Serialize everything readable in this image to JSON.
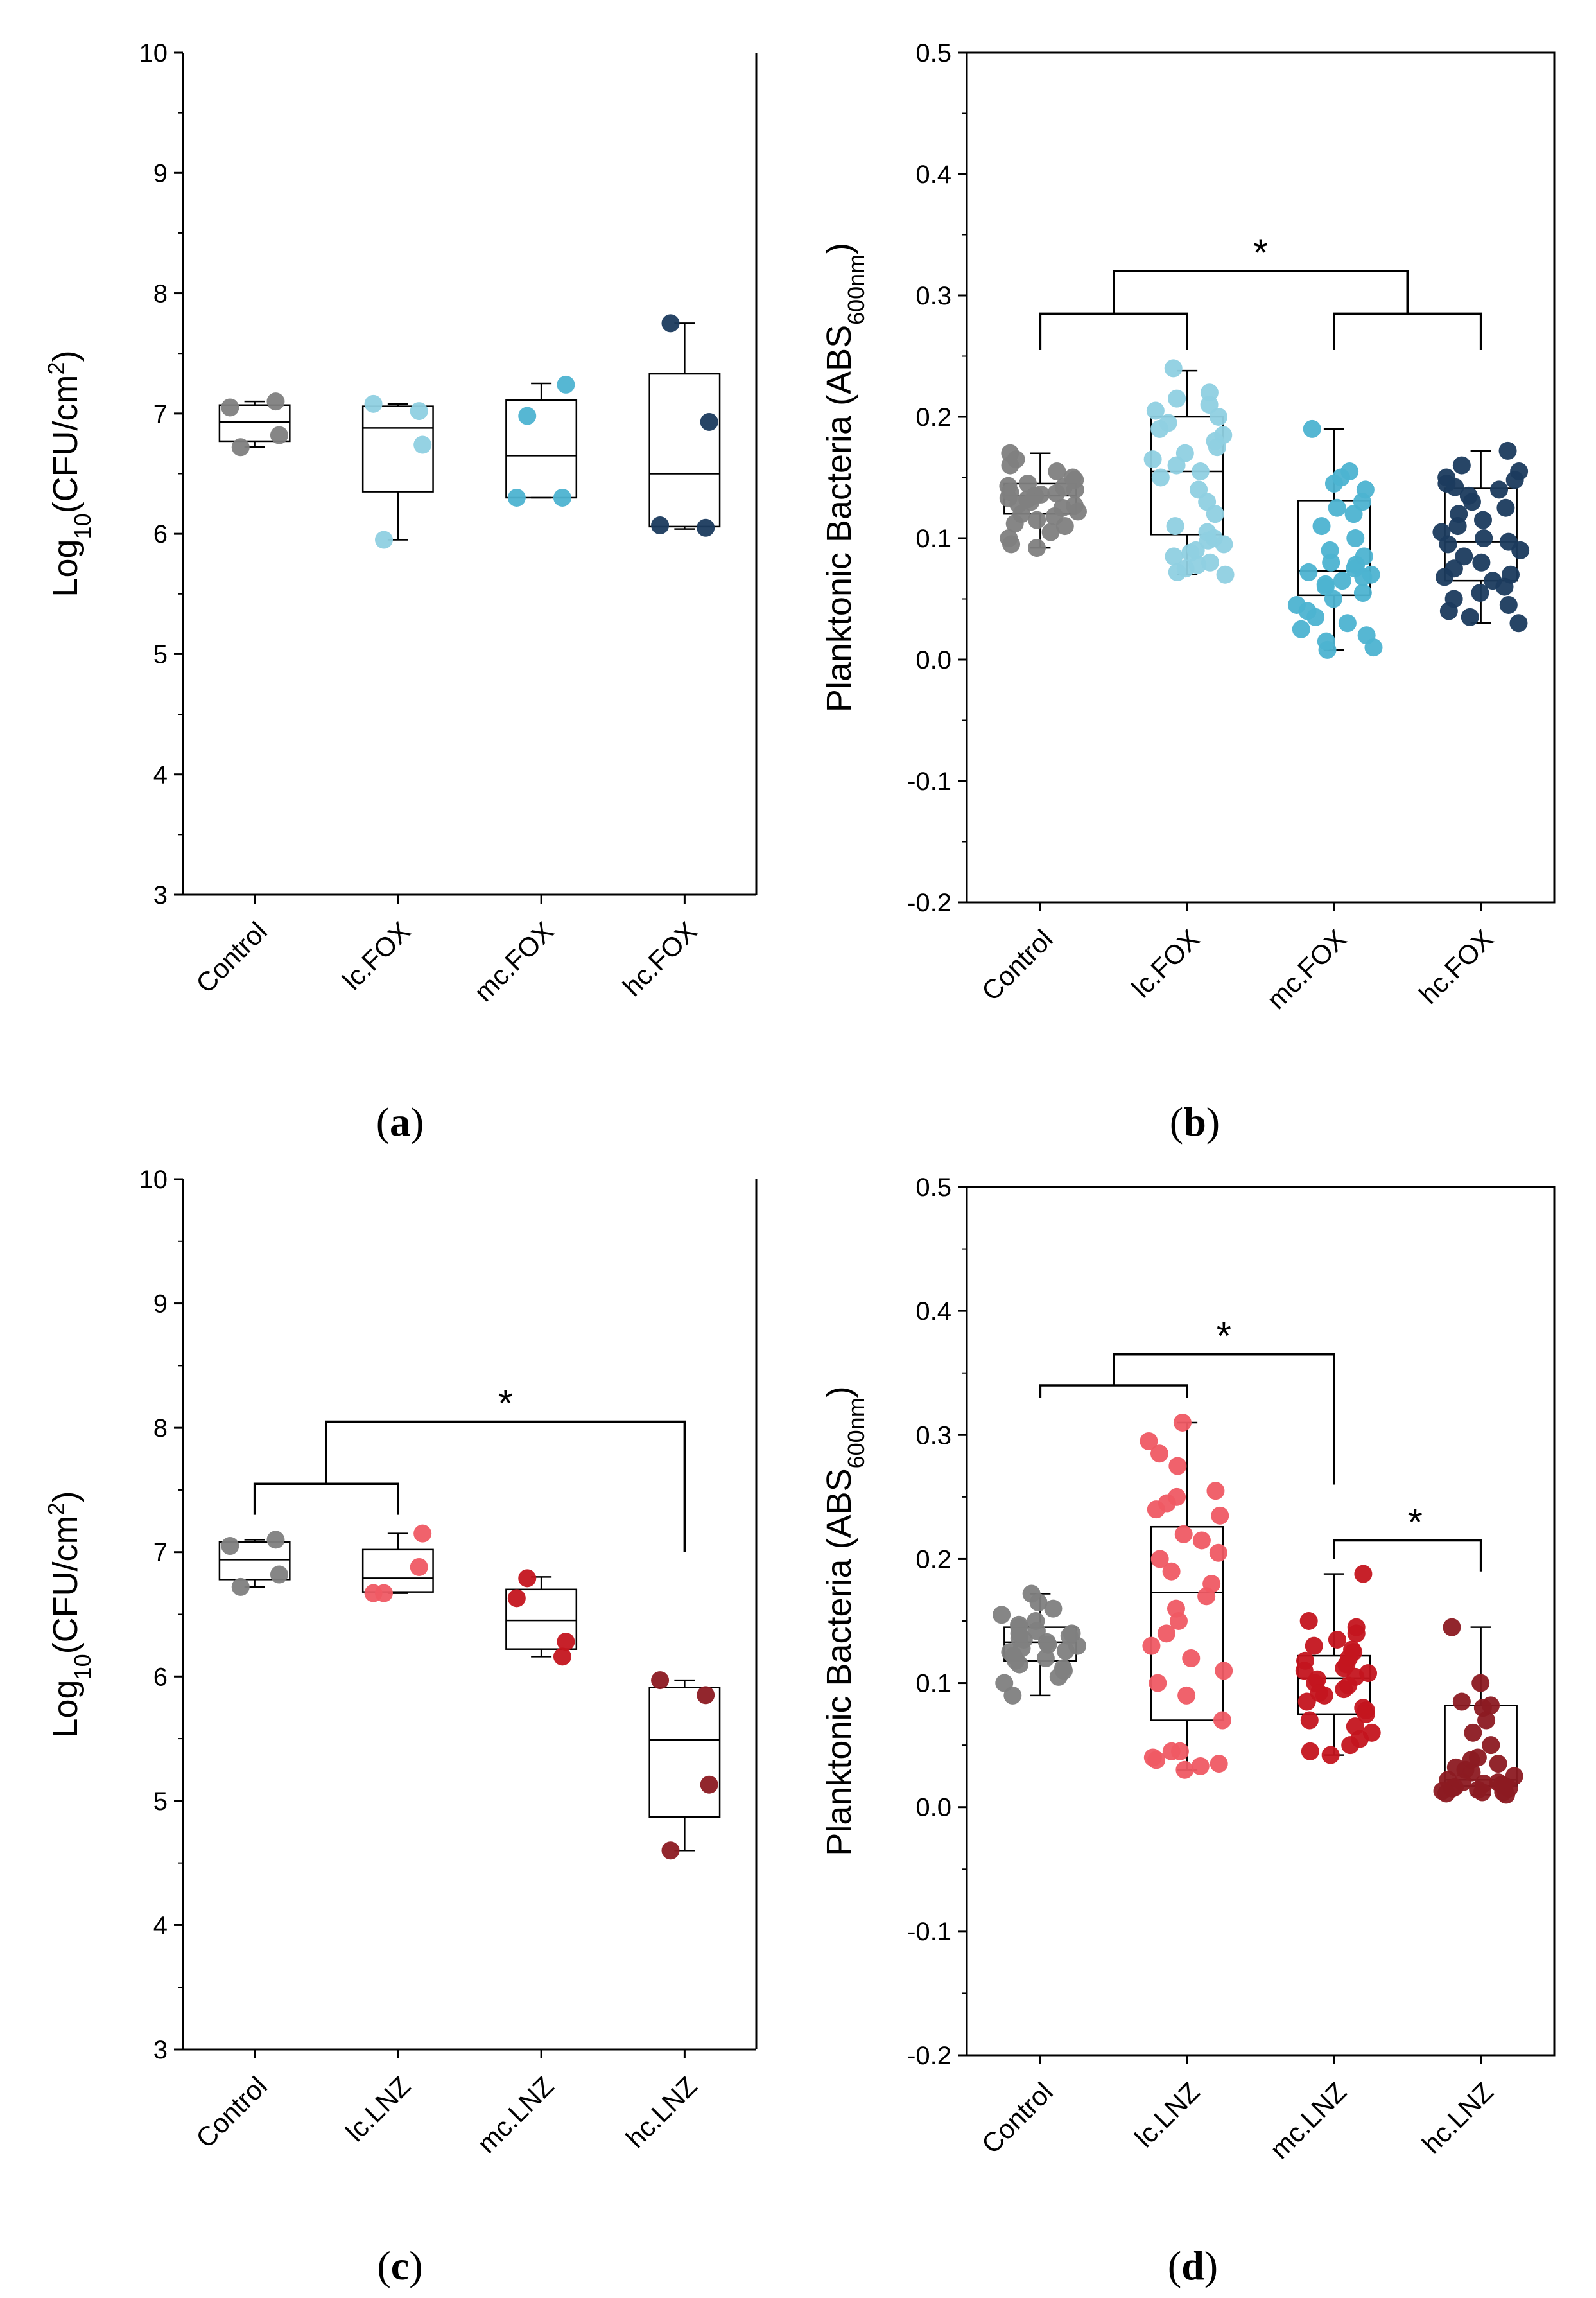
{
  "colors": {
    "control": "#7f7f7f",
    "fox_lc": "#8fd0e2",
    "fox_mc": "#4db3d1",
    "fox_hc": "#1b3b5e",
    "lnz_lc": "#ef5a64",
    "lnz_mc": "#c4151f",
    "lnz_hc": "#8c1a22"
  },
  "chart_data": [
    {
      "panel": "a",
      "type": "box",
      "caption_letter": "a",
      "ylabel_main": "Log",
      "ylabel_sub": "10",
      "ylabel_rest": "(CFU/cm",
      "ylabel_sup": "2",
      "ylabel_end": ")",
      "ylim": [
        3,
        10
      ],
      "yticks": [
        "3",
        "4",
        "5",
        "6",
        "7",
        "8",
        "9",
        "10"
      ],
      "categories": [
        "Control",
        "lc.FOX",
        "mc.FOX",
        "hc.FOX"
      ],
      "color_keys": [
        "control",
        "fox_lc",
        "fox_mc",
        "fox_hc"
      ],
      "boxes": [
        {
          "q1": 6.77,
          "median": 6.93,
          "q3": 7.07,
          "whisker_low": 6.72,
          "whisker_high": 7.1
        },
        {
          "q1": 6.35,
          "median": 6.88,
          "q3": 7.06,
          "whisker_low": 5.95,
          "whisker_high": 7.08
        },
        {
          "q1": 6.3,
          "median": 6.65,
          "q3": 7.11,
          "whisker_low": 6.3,
          "whisker_high": 7.25
        },
        {
          "q1": 6.06,
          "median": 6.5,
          "q3": 7.33,
          "whisker_low": 6.04,
          "whisker_high": 7.75
        }
      ],
      "points": [
        [
          7.05,
          6.82,
          6.72,
          7.1
        ],
        [
          7.08,
          6.74,
          5.95,
          7.02
        ],
        [
          6.3,
          7.24,
          6.98,
          6.3
        ],
        [
          6.07,
          6.93,
          7.75,
          6.05
        ]
      ],
      "brackets": []
    },
    {
      "panel": "b",
      "type": "box",
      "caption_letter": "b",
      "ylabel_main": "Planktonic Bacteria (ABS",
      "ylabel_sub": "600nm",
      "ylabel_rest": ")",
      "ylabel_sup": "",
      "ylabel_end": "",
      "ylim": [
        -0.2,
        0.5
      ],
      "yticks": [
        "-0.2",
        "-0.1",
        "0.0",
        "0.1",
        "0.2",
        "0.3",
        "0.4",
        "0.5"
      ],
      "categories": [
        "Control",
        "lc.FOX",
        "mc.FOX",
        "hc.FOX"
      ],
      "color_keys": [
        "control",
        "fox_lc",
        "fox_mc",
        "fox_hc"
      ],
      "boxes": [
        {
          "q1": 0.12,
          "median": 0.135,
          "q3": 0.145,
          "whisker_low": 0.092,
          "whisker_high": 0.17
        },
        {
          "q1": 0.103,
          "median": 0.155,
          "q3": 0.2,
          "whisker_low": 0.07,
          "whisker_high": 0.238
        },
        {
          "q1": 0.053,
          "median": 0.073,
          "q3": 0.131,
          "whisker_low": 0.008,
          "whisker_high": 0.19
        },
        {
          "q1": 0.065,
          "median": 0.097,
          "q3": 0.141,
          "whisker_low": 0.03,
          "whisker_high": 0.172
        }
      ],
      "points": [
        [
          0.17,
          0.165,
          0.16,
          0.155,
          0.15,
          0.148,
          0.145,
          0.142,
          0.14,
          0.138,
          0.136,
          0.135,
          0.133,
          0.132,
          0.13,
          0.128,
          0.127,
          0.125,
          0.122,
          0.12,
          0.118,
          0.115,
          0.112,
          0.11,
          0.105,
          0.1,
          0.095,
          0.092,
          0.143,
          0.137
        ],
        [
          0.24,
          0.22,
          0.215,
          0.21,
          0.205,
          0.2,
          0.195,
          0.19,
          0.185,
          0.18,
          0.175,
          0.17,
          0.165,
          0.16,
          0.155,
          0.15,
          0.14,
          0.13,
          0.12,
          0.11,
          0.1,
          0.095,
          0.09,
          0.085,
          0.08,
          0.075,
          0.072,
          0.07,
          0.078,
          0.088,
          0.098,
          0.105
        ],
        [
          0.19,
          0.155,
          0.15,
          0.145,
          0.14,
          0.13,
          0.125,
          0.12,
          0.11,
          0.1,
          0.09,
          0.085,
          0.08,
          0.078,
          0.075,
          0.072,
          0.07,
          0.068,
          0.065,
          0.062,
          0.06,
          0.055,
          0.05,
          0.045,
          0.04,
          0.035,
          0.03,
          0.025,
          0.02,
          0.015,
          0.01,
          0.008
        ],
        [
          0.172,
          0.16,
          0.155,
          0.15,
          0.148,
          0.145,
          0.142,
          0.14,
          0.135,
          0.13,
          0.125,
          0.12,
          0.115,
          0.11,
          0.105,
          0.1,
          0.097,
          0.095,
          0.09,
          0.085,
          0.08,
          0.075,
          0.07,
          0.068,
          0.065,
          0.06,
          0.055,
          0.05,
          0.045,
          0.04,
          0.035,
          0.03
        ]
      ],
      "brackets": [
        {
          "kind": "bridge",
          "left_a": 0,
          "left_b": 1,
          "left_y": 0.285,
          "left_foot": 0.255,
          "right_a": 2,
          "right_b": 3,
          "right_y": 0.285,
          "right_foot": 0.255,
          "top_y": 0.32,
          "label": "*"
        }
      ]
    },
    {
      "panel": "c",
      "type": "box",
      "caption_letter": "c",
      "ylabel_main": "Log",
      "ylabel_sub": "10",
      "ylabel_rest": "(CFU/cm",
      "ylabel_sup": "2",
      "ylabel_end": ")",
      "ylim": [
        3,
        10
      ],
      "yticks": [
        "3",
        "4",
        "5",
        "6",
        "7",
        "8",
        "9",
        "10"
      ],
      "categories": [
        "Control",
        "lc.LNZ",
        "mc.LNZ",
        "hc.LNZ"
      ],
      "color_keys": [
        "control",
        "lnz_lc",
        "lnz_mc",
        "lnz_hc"
      ],
      "boxes": [
        {
          "q1": 6.78,
          "median": 6.94,
          "q3": 7.08,
          "whisker_low": 6.72,
          "whisker_high": 7.1
        },
        {
          "q1": 6.68,
          "median": 6.79,
          "q3": 7.02,
          "whisker_low": 6.67,
          "whisker_high": 7.15
        },
        {
          "q1": 6.22,
          "median": 6.45,
          "q3": 6.7,
          "whisker_low": 6.16,
          "whisker_high": 6.8
        },
        {
          "q1": 4.87,
          "median": 5.49,
          "q3": 5.91,
          "whisker_low": 4.6,
          "whisker_high": 5.97
        }
      ],
      "points": [
        [
          7.05,
          6.82,
          6.72,
          7.1
        ],
        [
          6.67,
          7.15,
          6.67,
          6.88
        ],
        [
          6.63,
          6.28,
          6.79,
          6.16
        ],
        [
          5.97,
          5.13,
          4.6,
          5.85
        ]
      ],
      "brackets": [
        {
          "kind": "nested",
          "a": 0,
          "b": 1,
          "y": 7.55,
          "foot": 7.3,
          "far": 3,
          "top_y": 8.05,
          "far_foot": 7.0,
          "label": "*"
        }
      ]
    },
    {
      "panel": "d",
      "type": "box",
      "caption_letter": "d",
      "ylabel_main": "Planktonic Bacteria (ABS",
      "ylabel_sub": "600nm",
      "ylabel_rest": ")",
      "ylabel_sup": "",
      "ylabel_end": "",
      "ylim": [
        -0.2,
        0.5
      ],
      "yticks": [
        "-0.2",
        "-0.1",
        "0.0",
        "0.1",
        "0.2",
        "0.3",
        "0.4",
        "0.5"
      ],
      "categories": [
        "Control",
        "lc.LNZ",
        "mc.LNZ",
        "hc.LNZ"
      ],
      "color_keys": [
        "control",
        "lnz_lc",
        "lnz_mc",
        "lnz_hc"
      ],
      "boxes": [
        {
          "q1": 0.118,
          "median": 0.133,
          "q3": 0.145,
          "whisker_low": 0.09,
          "whisker_high": 0.172
        },
        {
          "q1": 0.07,
          "median": 0.173,
          "q3": 0.226,
          "whisker_low": 0.03,
          "whisker_high": 0.31
        },
        {
          "q1": 0.075,
          "median": 0.104,
          "q3": 0.122,
          "whisker_low": 0.042,
          "whisker_high": 0.188
        },
        {
          "q1": 0.017,
          "median": 0.022,
          "q3": 0.082,
          "whisker_low": 0.01,
          "whisker_high": 0.145
        }
      ],
      "points": [
        [
          0.172,
          0.165,
          0.16,
          0.155,
          0.15,
          0.147,
          0.145,
          0.142,
          0.14,
          0.138,
          0.136,
          0.135,
          0.133,
          0.131,
          0.13,
          0.128,
          0.125,
          0.122,
          0.12,
          0.118,
          0.115,
          0.112,
          0.11,
          0.105,
          0.1,
          0.09,
          0.14,
          0.126
        ],
        [
          0.31,
          0.295,
          0.285,
          0.275,
          0.255,
          0.25,
          0.245,
          0.24,
          0.235,
          0.22,
          0.215,
          0.205,
          0.2,
          0.19,
          0.18,
          0.17,
          0.16,
          0.15,
          0.14,
          0.13,
          0.12,
          0.11,
          0.1,
          0.09,
          0.07,
          0.045,
          0.04,
          0.038,
          0.035,
          0.033,
          0.03,
          0.045
        ],
        [
          0.188,
          0.15,
          0.145,
          0.14,
          0.135,
          0.13,
          0.127,
          0.125,
          0.12,
          0.118,
          0.115,
          0.112,
          0.11,
          0.108,
          0.105,
          0.103,
          0.1,
          0.098,
          0.095,
          0.092,
          0.09,
          0.085,
          0.08,
          0.078,
          0.075,
          0.07,
          0.065,
          0.06,
          0.055,
          0.05,
          0.045,
          0.042
        ],
        [
          0.145,
          0.1,
          0.085,
          0.082,
          0.08,
          0.07,
          0.06,
          0.05,
          0.04,
          0.038,
          0.035,
          0.032,
          0.03,
          0.028,
          0.025,
          0.022,
          0.02,
          0.019,
          0.018,
          0.017,
          0.016,
          0.015,
          0.014,
          0.013,
          0.012,
          0.011,
          0.01,
          0.02,
          0.015,
          0.012
        ]
      ],
      "brackets": [
        {
          "kind": "nested",
          "a": 0,
          "b": 1,
          "y": 0.34,
          "foot": 0.33,
          "far": 2,
          "top_y": 0.365,
          "far_foot": 0.26,
          "label": "*"
        },
        {
          "kind": "simple",
          "a": 2,
          "b": 3,
          "y": 0.215,
          "foot_left": 0.2,
          "foot_right": 0.19,
          "label": "*"
        }
      ]
    }
  ]
}
